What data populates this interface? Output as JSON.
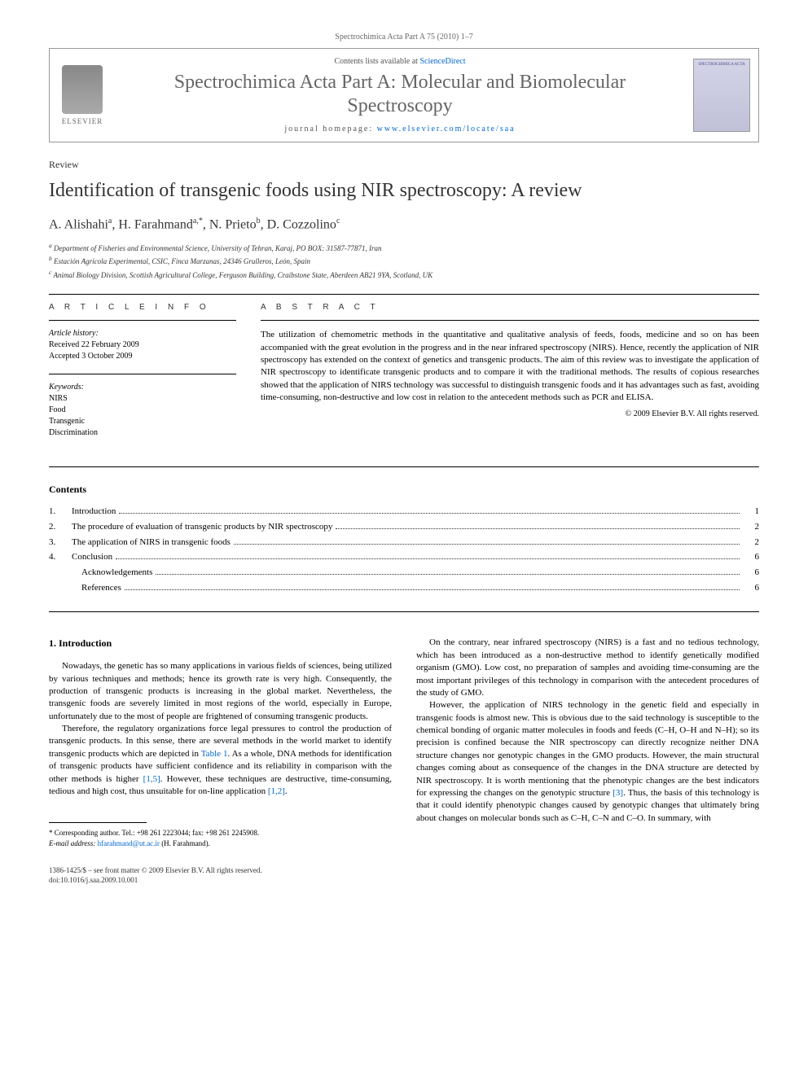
{
  "header": {
    "running_head": "Spectrochimica Acta Part A 75 (2010) 1–7",
    "contents_line_prefix": "Contents lists available at ",
    "contents_link": "ScienceDirect",
    "journal_name": "Spectrochimica Acta Part A: Molecular and Biomolecular Spectroscopy",
    "homepage_prefix": "journal homepage: ",
    "homepage_url": "www.elsevier.com/locate/saa",
    "publisher_label": "ELSEVIER",
    "cover_label": "SPECTROCHIMICA ACTA"
  },
  "article": {
    "type": "Review",
    "title": "Identification of transgenic foods using NIR spectroscopy: A review",
    "authors_html": "A. Alishahi",
    "author_a_sup": "a",
    "author_b": "H. Farahmand",
    "author_b_sup": "a,*",
    "author_c": "N. Prieto",
    "author_c_sup": "b",
    "author_d": "D. Cozzolino",
    "author_d_sup": "c",
    "sep": ", ",
    "affiliations": {
      "a": "Department of Fisheries and Environmental Science, University of Tehran, Karaj, PO BOX: 31587-77871, Iran",
      "b": "Estación Agrícola Experimental, CSIC, Finca Marzanas, 24346 Grulleros, León, Spain",
      "c": "Animal Biology Division, Scottish Agricultural College, Ferguson Building, Craibstone State, Aberdeen AB21 9YA, Scotland, UK"
    }
  },
  "info": {
    "heading": "A R T I C L E   I N F O",
    "history_label": "Article history:",
    "received": "Received 22 February 2009",
    "accepted": "Accepted 3 October 2009",
    "keywords_label": "Keywords:",
    "keywords": [
      "NIRS",
      "Food",
      "Transgenic",
      "Discrimination"
    ]
  },
  "abstract": {
    "heading": "A B S T R A C T",
    "text": "The utilization of chemometric methods in the quantitative and qualitative analysis of feeds, foods, medicine and so on has been accompanied with the great evolution in the progress and in the near infrared spectroscopy (NIRS). Hence, recently the application of NIR spectroscopy has extended on the context of genetics and transgenic products. The aim of this review was to investigate the application of NIR spectroscopy to identificate transgenic products and to compare it with the traditional methods. The results of copious researches showed that the application of NIRS technology was successful to distinguish transgenic foods and it has advantages such as fast, avoiding time-consuming, non-destructive and low cost in relation to the antecedent methods such as PCR and ELISA.",
    "copyright": "© 2009 Elsevier B.V. All rights reserved."
  },
  "contents": {
    "heading": "Contents",
    "items": [
      {
        "num": "1.",
        "label": "Introduction",
        "page": "1"
      },
      {
        "num": "2.",
        "label": "The procedure of evaluation of transgenic products by NIR spectroscopy",
        "page": "2"
      },
      {
        "num": "3.",
        "label": "The application of NIRS in transgenic foods",
        "page": "2"
      },
      {
        "num": "4.",
        "label": "Conclusion",
        "page": "6"
      },
      {
        "num": "",
        "label": "Acknowledgements",
        "page": "6",
        "indent": true
      },
      {
        "num": "",
        "label": "References",
        "page": "6",
        "indent": true
      }
    ]
  },
  "body": {
    "section1_heading": "1.  Introduction",
    "col1_p1": "Nowadays, the genetic has so many applications in various fields of sciences, being utilized by various techniques and methods; hence its growth rate is very high. Consequently, the production of transgenic products is increasing in the global market. Nevertheless, the transgenic foods are severely limited in most regions of the world, especially in Europe, unfortunately due to the most of people are frightened of consuming transgenic products.",
    "col1_p2_a": "Therefore, the regulatory organizations force legal pressures to control the production of transgenic products. In this sense, there are several methods in the world market to identify transgenic products which are depicted in ",
    "table1_link": "Table 1",
    "col1_p2_b": ". As a whole, DNA methods for identification of transgenic products have sufficient confidence and its reliability in comparison with the other methods is higher ",
    "ref15": "[1,5]",
    "col1_p2_c": ". However, these techniques are destructive, time-consuming, tedious and high cost, thus unsuitable for on-line application ",
    "ref12": "[1,2]",
    "col1_p2_d": ".",
    "col2_p1": "On the contrary, near infrared spectroscopy (NIRS) is a fast and no tedious technology, which has been introduced as a non-destructive method to identify genetically modified organism (GMO). Low cost, no preparation of samples and avoiding time-consuming are the most important privileges of this technology in comparison with the antecedent procedures of the study of GMO.",
    "col2_p2_a": "However, the application of NIRS technology in the genetic field and especially in transgenic foods is almost new. This is obvious due to the said technology is susceptible to the chemical bonding of organic matter molecules in foods and feeds (C–H, O–H and N–H); so its precision is confined because the NIR spectroscopy can directly recognize neither DNA structure changes nor genotypic changes in the GMO products. However, the main structural changes coming about as consequence of the changes in the DNA structure are detected by NIR spectroscopy. It is worth mentioning that the phenotypic changes are the best indicators for expressing the changes on the genotypic structure ",
    "ref3": "[3]",
    "col2_p2_b": ". Thus, the basis of this technology is that it could identify phenotypic changes caused by genotypic changes that ultimately bring about changes on molecular bonds such as C–H, C–N and C–O. In summary, with"
  },
  "footnote": {
    "corr_label": "* Corresponding author. Tel.: +98 261 2223044; fax: +98 261 2245908.",
    "email_label": "E-mail address:",
    "email": "hfarahmand@ut.ac.ir",
    "email_suffix": "(H. Farahmand)."
  },
  "footer": {
    "line1": "1386-1425/$ – see front matter © 2009 Elsevier B.V. All rights reserved.",
    "line2": "doi:10.1016/j.saa.2009.10.001"
  }
}
